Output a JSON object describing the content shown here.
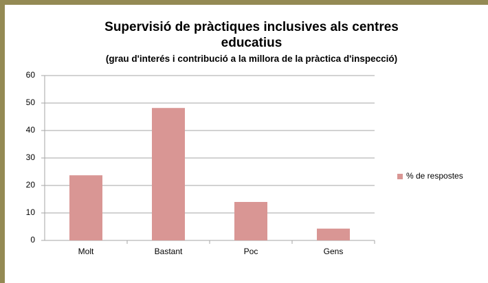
{
  "chart_data": {
    "type": "bar",
    "title": "Supervisió de pràctiques inclusives als centres educatius",
    "subtitle": "(grau d'interés i contribució a la millora de la pràctica d'inspecció)",
    "categories": [
      "Molt",
      "Bastant",
      "Poc",
      "Gens"
    ],
    "series": [
      {
        "name": "% de respostes",
        "color": "#d99694",
        "values": [
          23.7,
          48.2,
          14,
          4.3
        ]
      }
    ],
    "ylim": [
      0,
      60
    ],
    "yticks": [
      0,
      10,
      20,
      30,
      40,
      50,
      60
    ],
    "grid": true,
    "legend": "right"
  }
}
